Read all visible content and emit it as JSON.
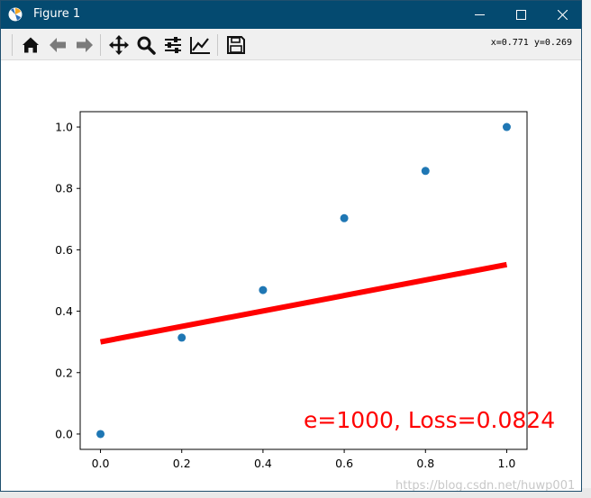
{
  "window": {
    "title": "Figure 1"
  },
  "toolbar": {
    "buttons": [
      {
        "name": "home-icon"
      },
      {
        "name": "back-arrow-icon"
      },
      {
        "name": "forward-arrow-icon"
      },
      {
        "name": "pan-move-icon"
      },
      {
        "name": "zoom-magnifier-icon"
      },
      {
        "name": "configure-subplots-icon"
      },
      {
        "name": "edit-axis-icon"
      },
      {
        "name": "save-floppy-icon"
      }
    ],
    "coords": "x=0.771  y=0.269"
  },
  "chart_data": {
    "type": "scatter",
    "xlim": [
      -0.05,
      1.05
    ],
    "ylim": [
      -0.05,
      1.05
    ],
    "xticks": [
      "0.0",
      "0.2",
      "0.4",
      "0.6",
      "0.8",
      "1.0"
    ],
    "yticks": [
      "0.0",
      "0.2",
      "0.4",
      "0.6",
      "0.8",
      "1.0"
    ],
    "grid": false,
    "series": [
      {
        "kind": "scatter",
        "color": "#1f77b4",
        "x": [
          0.0,
          0.2,
          0.4,
          0.6,
          0.8,
          1.0
        ],
        "y": [
          0.0,
          0.314,
          0.469,
          0.703,
          0.857,
          1.0
        ]
      },
      {
        "kind": "line",
        "color": "#ff0000",
        "x": [
          0.0,
          1.0
        ],
        "y": [
          0.3,
          0.552
        ]
      }
    ],
    "annotation": "e=1000, Loss=0.0824"
  },
  "watermark": "https://blog.csdn.net/huwp001"
}
